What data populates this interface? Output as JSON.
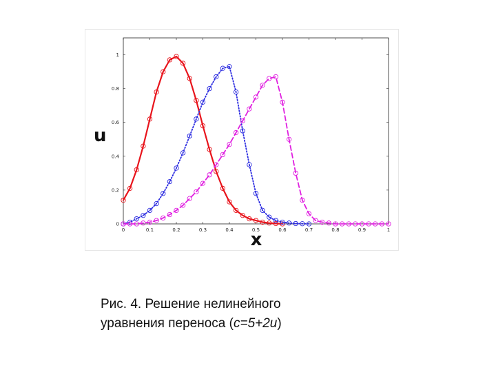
{
  "caption": {
    "line1": "Рис. 4. Решение нелинейного",
    "line2_prefix": "уравнения переноса (",
    "line2_formula": "c=5+2u",
    "line2_suffix": ")"
  },
  "chart_data": {
    "type": "line",
    "title": "",
    "xlabel": "x",
    "ylabel": "u",
    "xlim": [
      0,
      1
    ],
    "ylim": [
      0,
      1.1
    ],
    "grid": false,
    "x_ticks": [
      "0",
      "0.1",
      "0.2",
      "0.3",
      "0.4",
      "0.5",
      "0.6",
      "0.7",
      "0.8",
      "0.9",
      "1"
    ],
    "y_ticks": [
      "0",
      "0.2",
      "0.4",
      "0.6",
      "0.8",
      "1"
    ],
    "series": [
      {
        "color": "#e8141c",
        "line_style": "solid",
        "x": [
          0.0,
          0.025,
          0.05,
          0.075,
          0.1,
          0.125,
          0.15,
          0.175,
          0.2,
          0.225,
          0.25,
          0.275,
          0.3,
          0.325,
          0.35,
          0.375,
          0.4,
          0.425,
          0.45,
          0.475,
          0.5,
          0.525,
          0.55,
          0.575,
          0.6
        ],
        "y": [
          0.14,
          0.21,
          0.32,
          0.46,
          0.62,
          0.78,
          0.9,
          0.97,
          0.99,
          0.95,
          0.86,
          0.73,
          0.58,
          0.44,
          0.31,
          0.21,
          0.13,
          0.08,
          0.05,
          0.03,
          0.02,
          0.01,
          0.005,
          0.002,
          0.0
        ]
      },
      {
        "color": "#2a2ae0",
        "line_style": "dotted",
        "x": [
          0.0,
          0.025,
          0.05,
          0.075,
          0.1,
          0.125,
          0.15,
          0.175,
          0.2,
          0.225,
          0.25,
          0.275,
          0.3,
          0.325,
          0.35,
          0.375,
          0.4,
          0.425,
          0.45,
          0.475,
          0.5,
          0.525,
          0.55,
          0.575,
          0.6,
          0.625,
          0.65,
          0.675,
          0.7
        ],
        "y": [
          0.0,
          0.01,
          0.03,
          0.05,
          0.08,
          0.12,
          0.18,
          0.25,
          0.33,
          0.42,
          0.52,
          0.62,
          0.72,
          0.8,
          0.87,
          0.92,
          0.93,
          0.78,
          0.55,
          0.35,
          0.18,
          0.08,
          0.04,
          0.02,
          0.01,
          0.005,
          0.002,
          0.001,
          0.0
        ]
      },
      {
        "color": "#e020e0",
        "line_style": "dashed",
        "x": [
          0.0,
          0.025,
          0.05,
          0.075,
          0.1,
          0.125,
          0.15,
          0.175,
          0.2,
          0.225,
          0.25,
          0.275,
          0.3,
          0.325,
          0.35,
          0.375,
          0.4,
          0.425,
          0.45,
          0.475,
          0.5,
          0.525,
          0.55,
          0.575,
          0.6,
          0.625,
          0.65,
          0.675,
          0.7,
          0.725,
          0.75,
          0.775,
          0.8,
          0.825,
          0.85,
          0.875,
          0.9,
          0.925,
          0.95,
          0.975,
          1.0
        ],
        "y": [
          0.0,
          0.0,
          0.0,
          0.005,
          0.01,
          0.02,
          0.035,
          0.055,
          0.08,
          0.11,
          0.15,
          0.19,
          0.24,
          0.29,
          0.35,
          0.41,
          0.47,
          0.54,
          0.61,
          0.68,
          0.75,
          0.82,
          0.86,
          0.87,
          0.72,
          0.5,
          0.3,
          0.14,
          0.06,
          0.02,
          0.01,
          0.005,
          0.0,
          0.0,
          0.0,
          0.0,
          0.0,
          0.0,
          0.0,
          0.0,
          0.0
        ]
      }
    ]
  }
}
